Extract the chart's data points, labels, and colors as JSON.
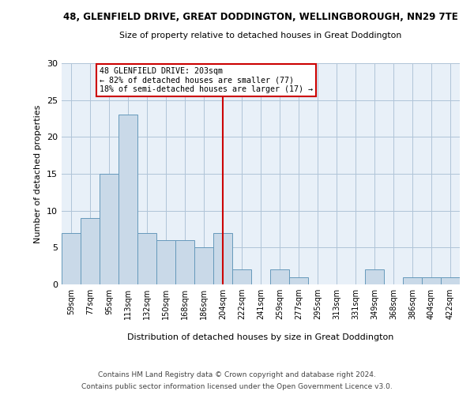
{
  "title": "48, GLENFIELD DRIVE, GREAT DODDINGTON, WELLINGBOROUGH, NN29 7TE",
  "subtitle": "Size of property relative to detached houses in Great Doddington",
  "xlabel_bottom": "Distribution of detached houses by size in Great Doddington",
  "ylabel": "Number of detached properties",
  "bin_labels": [
    "59sqm",
    "77sqm",
    "95sqm",
    "113sqm",
    "132sqm",
    "150sqm",
    "168sqm",
    "186sqm",
    "204sqm",
    "222sqm",
    "241sqm",
    "259sqm",
    "277sqm",
    "295sqm",
    "313sqm",
    "331sqm",
    "349sqm",
    "368sqm",
    "386sqm",
    "404sqm",
    "422sqm"
  ],
  "bar_heights": [
    7,
    9,
    15,
    23,
    7,
    6,
    6,
    5,
    7,
    2,
    0,
    2,
    1,
    0,
    0,
    0,
    2,
    0,
    1,
    1,
    1
  ],
  "bar_color": "#c9d9e8",
  "bar_edge_color": "#6699bb",
  "vline_x": 8,
  "vline_color": "#cc0000",
  "annotation_line1": "48 GLENFIELD DRIVE: 203sqm",
  "annotation_line2": "← 82% of detached houses are smaller (77)",
  "annotation_line3": "18% of semi-detached houses are larger (17) →",
  "annotation_box_color": "#cc0000",
  "ylim": [
    0,
    30
  ],
  "yticks": [
    0,
    5,
    10,
    15,
    20,
    25,
    30
  ],
  "grid_color": "#b0c4d8",
  "bg_color": "#e8f0f8",
  "footnote1": "Contains HM Land Registry data © Crown copyright and database right 2024.",
  "footnote2": "Contains public sector information licensed under the Open Government Licence v3.0."
}
